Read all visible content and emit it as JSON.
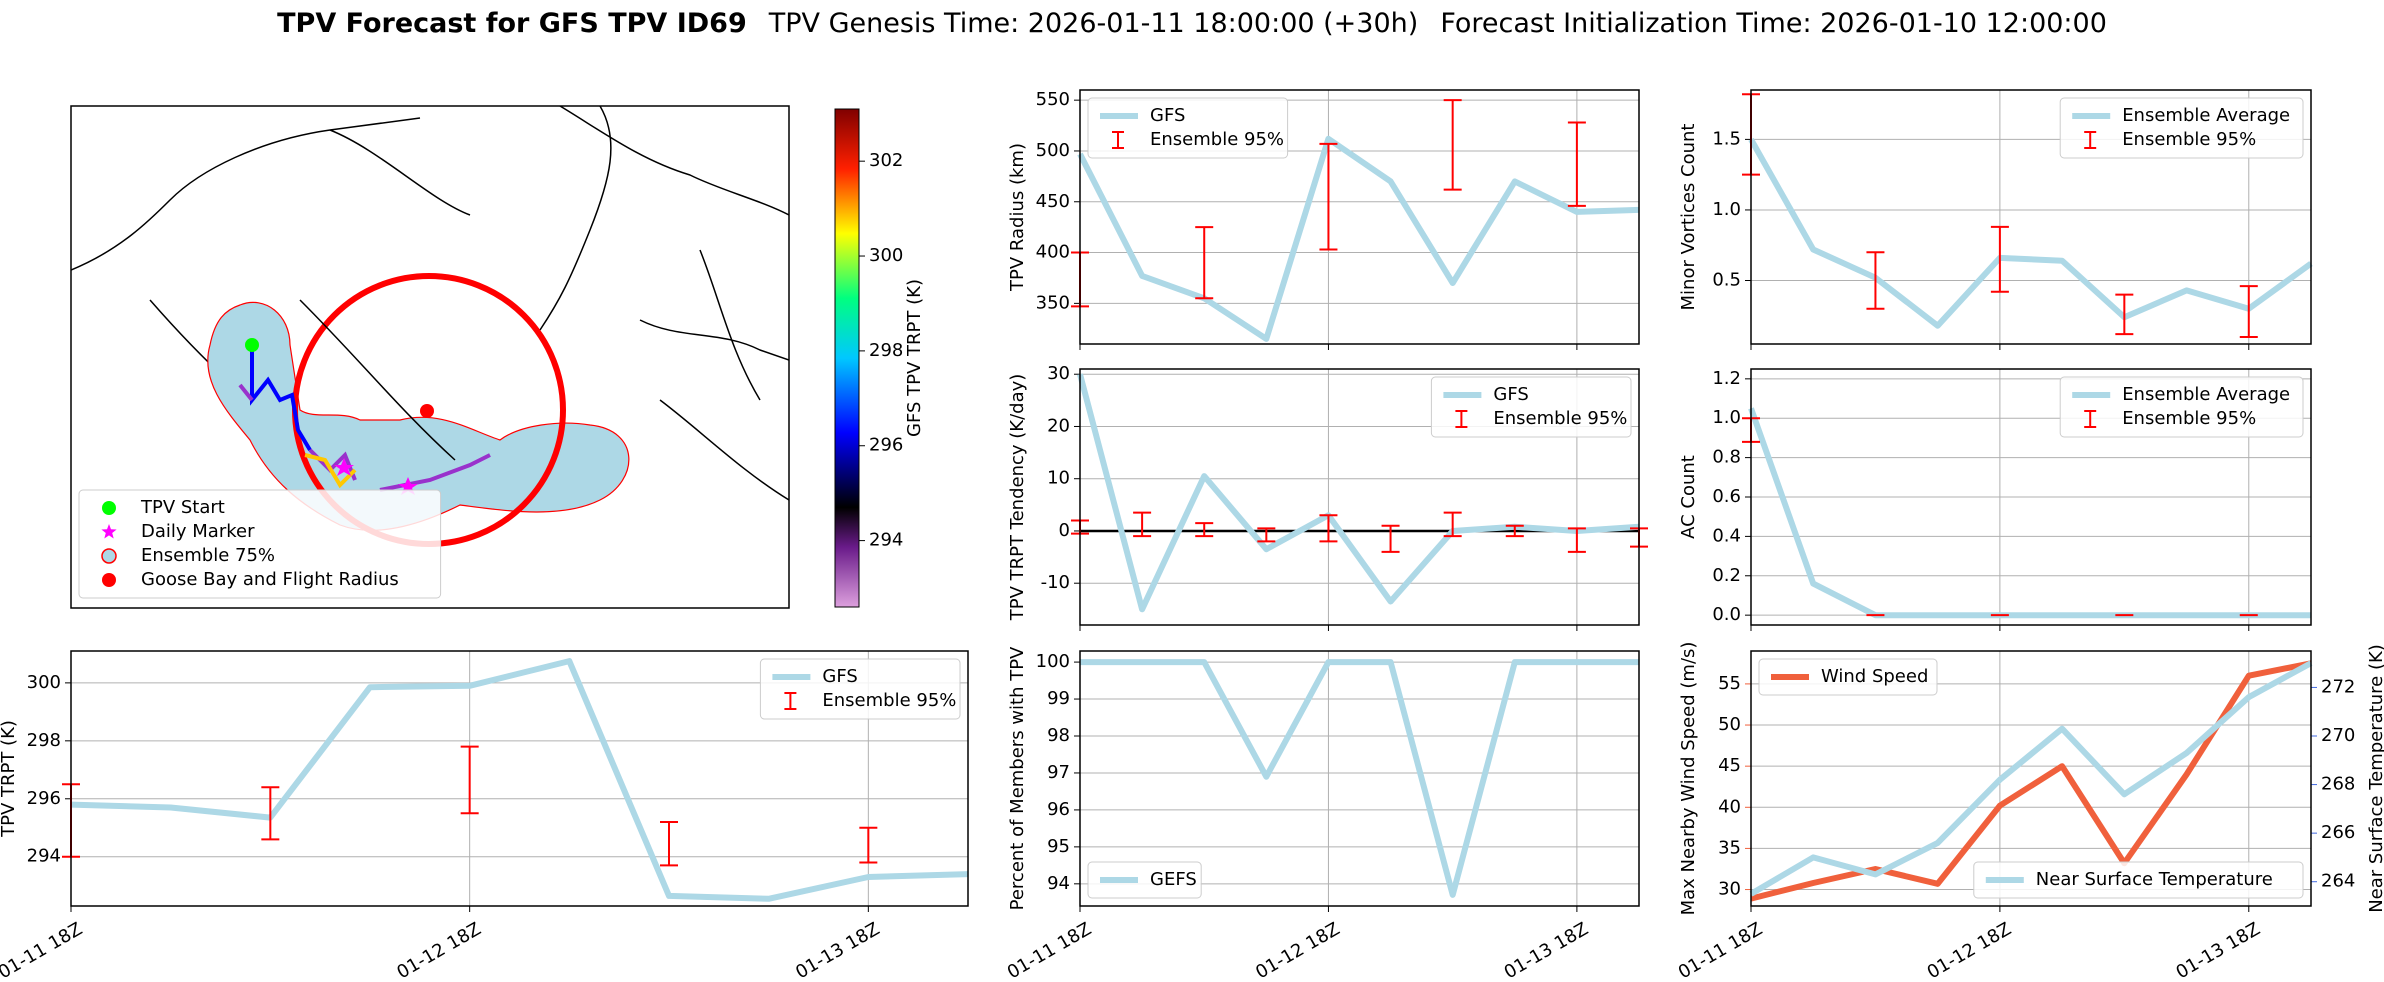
{
  "header": {
    "title": "TPV Forecast for GFS TPV ID69",
    "genesis": "TPV Genesis Time: 2026-01-11 18:00:00 (+30h)",
    "init": "Forecast Initialization Time: 2026-01-10 12:00:00"
  },
  "chart_data": [
    {
      "type": "map",
      "legend_corner": "lower left",
      "legend": [
        {
          "name": "TPV Start",
          "color": "#00ff00",
          "marker": "circle"
        },
        {
          "name": "Daily Marker",
          "color": "#ff00ff",
          "marker": "star"
        },
        {
          "name": "Ensemble 75%",
          "color": "#add8e6",
          "edgecolor": "#ff0000",
          "marker": "circle"
        },
        {
          "name": "Goose Bay and Flight Radius",
          "color": "#ff0000",
          "marker": "circle"
        }
      ],
      "colorbar": {
        "label": "GFS TPV TRPT (K)",
        "lim": [
          292.6,
          303.1
        ],
        "ticks": [
          294,
          296,
          298,
          300,
          302
        ]
      }
    },
    {
      "type": "line",
      "ylabel": "TPV Radius (km)",
      "ylim": [
        310,
        560
      ],
      "yticks": [
        350,
        400,
        450,
        500,
        550
      ],
      "xticks": [
        0,
        4,
        8
      ],
      "grid": true,
      "legend_corner": "upper left",
      "series": [
        {
          "name": "GFS",
          "color": "#add8e6",
          "values": [
            497,
            377,
            355,
            315,
            512,
            470,
            370,
            470,
            440,
            442
          ]
        },
        {
          "name": "Ensemble 95%",
          "kind": "errorbar",
          "color": "#ff0000",
          "low": [
            347,
            null,
            355,
            null,
            403,
            null,
            462,
            null,
            446,
            null
          ],
          "high": [
            400,
            null,
            425,
            null,
            507,
            null,
            550,
            null,
            528,
            null
          ]
        }
      ]
    },
    {
      "type": "line",
      "ylabel": "Minor Vortices Count",
      "ylim": [
        0.05,
        1.85
      ],
      "yticks": [
        {
          "value": 0.5,
          "label": "0.5"
        },
        {
          "value": 1.0,
          "label": "1.0"
        },
        {
          "value": 1.5,
          "label": "1.5"
        }
      ],
      "xticks": [
        0,
        4,
        8
      ],
      "grid": true,
      "legend_corner": "upper right",
      "series": [
        {
          "name": "Ensemble Average",
          "color": "#add8e6",
          "values": [
            1.5,
            0.72,
            0.52,
            0.18,
            0.66,
            0.64,
            0.24,
            0.43,
            0.3,
            0.62
          ]
        },
        {
          "name": "Ensemble 95%",
          "kind": "errorbar",
          "color": "#ff0000",
          "low": [
            1.25,
            null,
            0.3,
            null,
            0.42,
            null,
            0.12,
            null,
            0.1,
            null
          ],
          "high": [
            1.82,
            null,
            0.7,
            null,
            0.88,
            null,
            0.4,
            null,
            0.46,
            null
          ]
        }
      ]
    },
    {
      "type": "line",
      "ylabel": "TPV TRPT Tendency (K/day)",
      "ylim": [
        -18,
        31
      ],
      "yticks": [
        -10,
        0,
        10,
        20,
        30
      ],
      "xticks": [
        0,
        4,
        8
      ],
      "grid": true,
      "legend_corner": "upper right",
      "hline": 0,
      "series": [
        {
          "name": "GFS",
          "color": "#add8e6",
          "values": [
            30,
            -15,
            10.5,
            -3.5,
            3,
            -13.5,
            0,
            0.8,
            0,
            0.8
          ]
        },
        {
          "name": "Ensemble 95%",
          "kind": "errorbar",
          "color": "#ff0000",
          "low": [
            -0.5,
            -1,
            -1,
            -2,
            -2,
            -4,
            -1,
            -1,
            -4,
            -3
          ],
          "high": [
            2,
            3.5,
            1.5,
            0.5,
            3,
            1,
            3.5,
            1,
            0.5,
            0.5
          ]
        }
      ]
    },
    {
      "type": "line",
      "ylabel": "AC Count",
      "ylim": [
        -0.05,
        1.25
      ],
      "yticks": [
        {
          "value": 0,
          "label": "0.0"
        },
        {
          "value": 0.2,
          "label": "0.2"
        },
        {
          "value": 0.4,
          "label": "0.4"
        },
        {
          "value": 0.6,
          "label": "0.6"
        },
        {
          "value": 0.8,
          "label": "0.8"
        },
        {
          "value": 1.0,
          "label": "1.0"
        },
        {
          "value": 1.2,
          "label": "1.2"
        }
      ],
      "xticks": [
        0,
        4,
        8
      ],
      "grid": true,
      "legend_corner": "upper right",
      "series": [
        {
          "name": "Ensemble Average",
          "color": "#add8e6",
          "values": [
            1.05,
            0.16,
            0,
            0,
            0,
            0,
            0,
            0,
            0,
            0
          ]
        },
        {
          "name": "Ensemble 95%",
          "kind": "errorbar",
          "color": "#ff0000",
          "low": [
            0.88,
            null,
            0,
            null,
            0,
            null,
            0,
            null,
            0,
            null
          ],
          "high": [
            1.0,
            null,
            0,
            null,
            0,
            null,
            0,
            null,
            0,
            null
          ]
        }
      ]
    },
    {
      "type": "line",
      "ylabel": "TPV TRPT (K)",
      "ylim": [
        292.3,
        301.1
      ],
      "yticks": [
        294,
        296,
        298,
        300
      ],
      "grid": true,
      "legend_corner": "upper right",
      "categories": [
        "01-11 18Z",
        null,
        null,
        null,
        "01-12 18Z",
        null,
        null,
        null,
        "01-13 18Z",
        null
      ],
      "series": [
        {
          "name": "GFS",
          "color": "#add8e6",
          "values": [
            295.8,
            295.7,
            295.35,
            299.85,
            299.9,
            300.75,
            292.65,
            292.55,
            293.3,
            293.4
          ]
        },
        {
          "name": "Ensemble 95%",
          "kind": "errorbar",
          "color": "#ff0000",
          "low": [
            294,
            null,
            294.6,
            null,
            295.5,
            null,
            293.7,
            null,
            293.8,
            null
          ],
          "high": [
            296.5,
            null,
            296.4,
            null,
            297.8,
            null,
            295.2,
            null,
            295.0,
            null
          ]
        }
      ]
    },
    {
      "type": "line",
      "ylabel": "Percent of Members with TPV",
      "ylim": [
        93.4,
        100.3
      ],
      "yticks": [
        94,
        95,
        96,
        97,
        98,
        99,
        100
      ],
      "grid": true,
      "legend_corner": "lower left",
      "categories": [
        "01-11 18Z",
        null,
        null,
        null,
        "01-12 18Z",
        null,
        null,
        null,
        "01-13 18Z",
        null
      ],
      "series": [
        {
          "name": "GEFS",
          "color": "#add8e6",
          "values": [
            100,
            100,
            100,
            96.9,
            100,
            100,
            93.7,
            100,
            100,
            100
          ]
        }
      ]
    },
    {
      "type": "line",
      "ylabel": "Max Nearby Wind Speed (m/s)",
      "ylabel_color": "#f0603c",
      "y2label": "Near Surface Temperature (K)",
      "y2label_color": "#4169e1",
      "ylim": [
        28,
        59
      ],
      "yticks": [
        30,
        35,
        40,
        45,
        50,
        55
      ],
      "y2lim": [
        263,
        273.5
      ],
      "y2ticks": [
        264,
        266,
        268,
        270,
        272
      ],
      "grid": true,
      "legend_corner": "upper left",
      "legend2_corner": "lower right",
      "categories": [
        "01-11 18Z",
        null,
        null,
        null,
        "01-12 18Z",
        null,
        null,
        null,
        "01-13 18Z",
        null
      ],
      "series": [
        {
          "name": "Wind Speed",
          "color": "#f0603c",
          "values": [
            28.9,
            30.8,
            32.5,
            30.7,
            40.2,
            45,
            33.2,
            44,
            56,
            57.5
          ]
        },
        {
          "name": "Near Surface Temperature",
          "color": "#add8e6",
          "axis": "y2",
          "values": [
            263.5,
            265,
            264.3,
            265.6,
            268.2,
            270.3,
            267.6,
            269.3,
            271.6,
            273
          ]
        }
      ]
    }
  ]
}
